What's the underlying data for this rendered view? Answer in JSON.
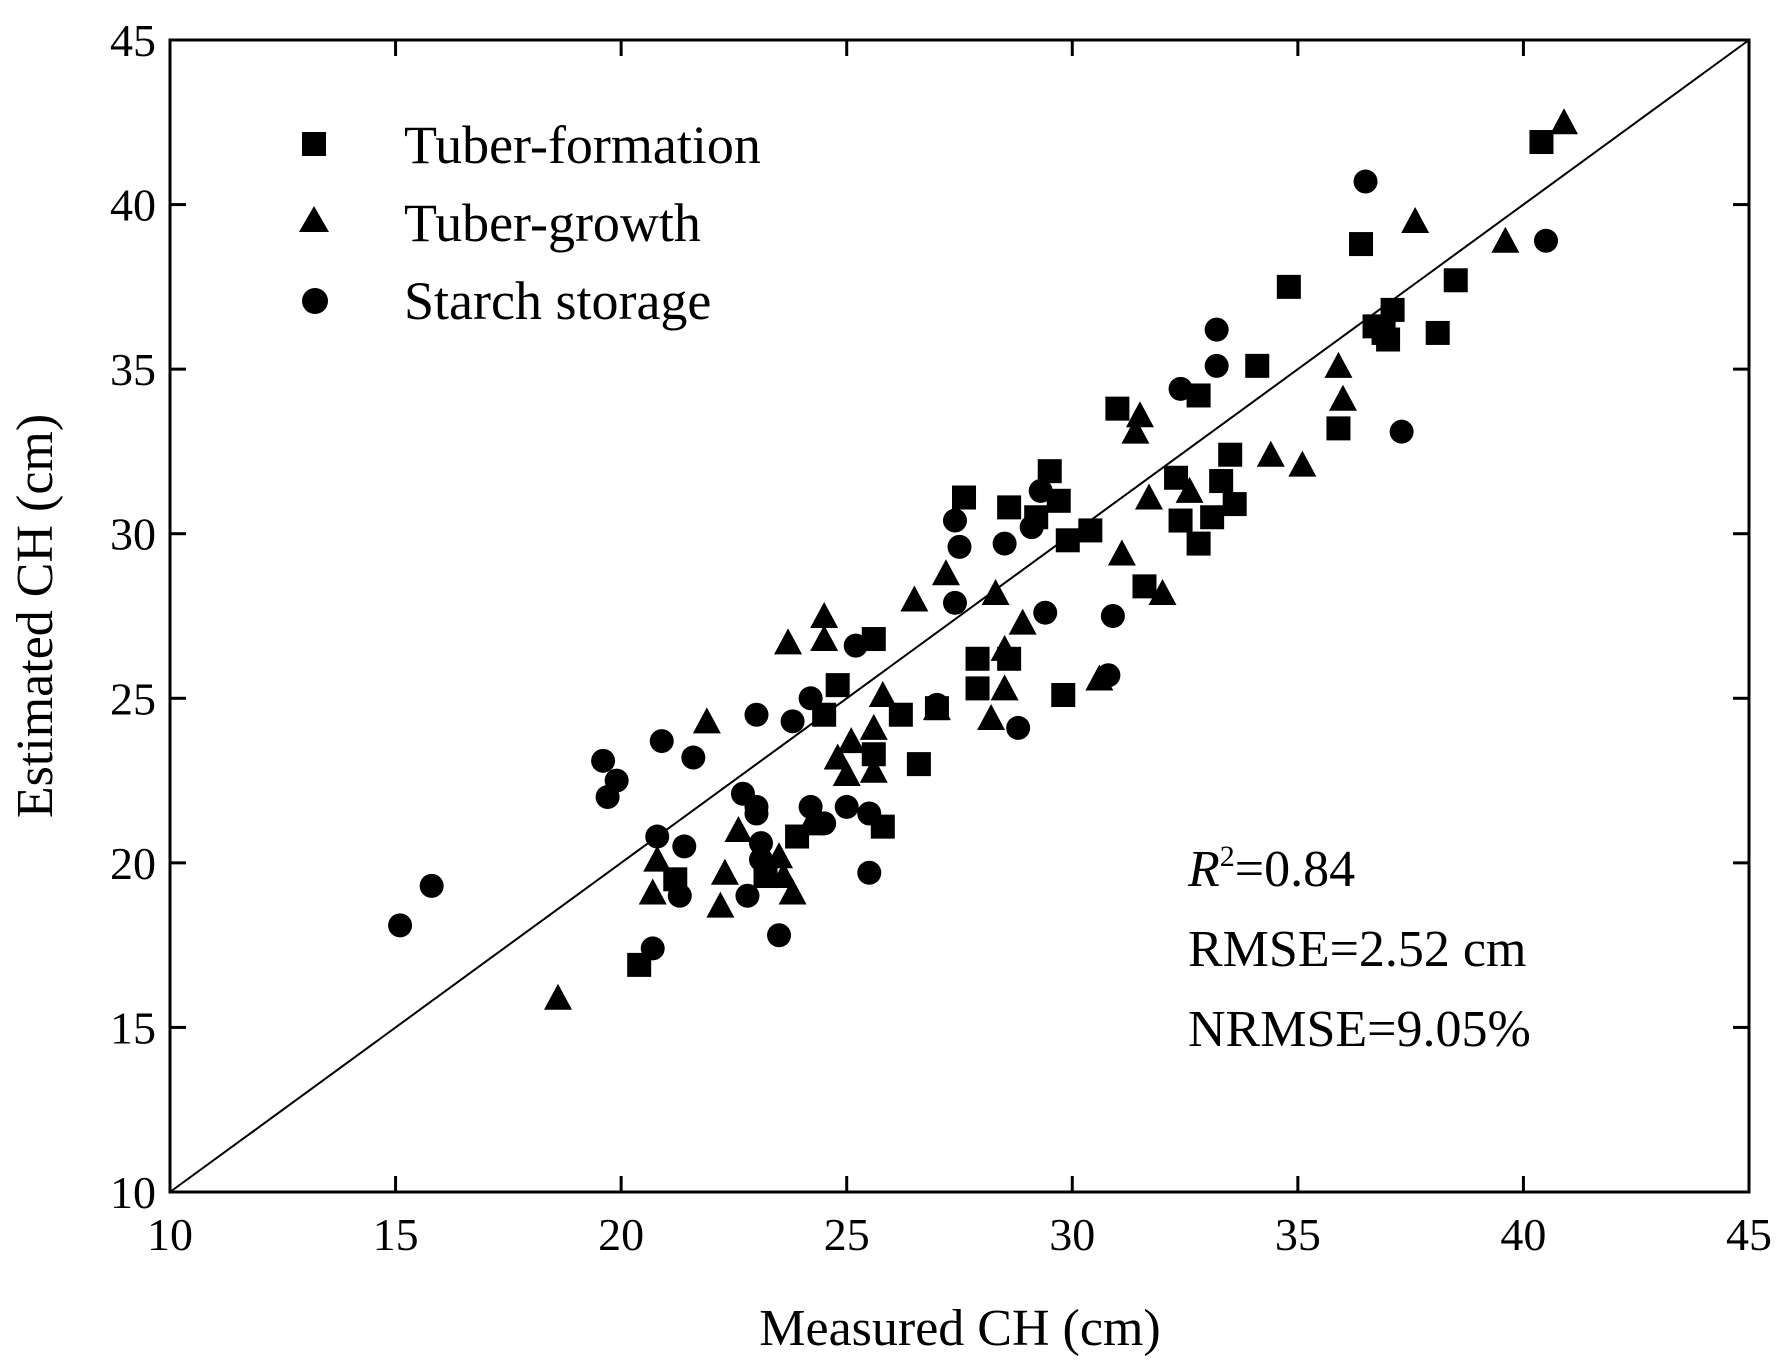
{
  "chart_data": {
    "type": "scatter",
    "xlabel": "Measured CH (cm)",
    "ylabel": "Estimated CH (cm)",
    "xlim": [
      10,
      45
    ],
    "ylim": [
      10,
      45
    ],
    "xticks": [
      "10",
      "15",
      "20",
      "25",
      "30",
      "35",
      "40",
      "45"
    ],
    "yticks": [
      "10",
      "15",
      "20",
      "25",
      "30",
      "35",
      "40",
      "45"
    ],
    "xtick_values": [
      10,
      15,
      20,
      25,
      30,
      35,
      40,
      45
    ],
    "ytick_values": [
      10,
      15,
      20,
      25,
      30,
      35,
      40,
      45
    ],
    "legend_position": "top-left",
    "reference_line": {
      "name": "1:1 line",
      "from": [
        10,
        10
      ],
      "to": [
        45,
        45
      ]
    },
    "annotations": {
      "r2_symbol": "R",
      "r2_sup": "2",
      "r2_value": "=0.84",
      "rmse": "RMSE=2.52 cm",
      "nrmse": "NRMSE=9.05%"
    },
    "series": [
      {
        "name": "Tuber-formation",
        "marker": "square",
        "points": [
          [
            20.4,
            16.9
          ],
          [
            21.2,
            19.5
          ],
          [
            23.2,
            19.6
          ],
          [
            23.9,
            20.8
          ],
          [
            24.5,
            24.5
          ],
          [
            24.8,
            25.4
          ],
          [
            25.6,
            26.8
          ],
          [
            25.6,
            23.3
          ],
          [
            25.8,
            21.1
          ],
          [
            26.2,
            24.5
          ],
          [
            26.6,
            23.0
          ],
          [
            27.0,
            24.7
          ],
          [
            27.6,
            31.1
          ],
          [
            27.9,
            26.2
          ],
          [
            27.9,
            25.3
          ],
          [
            28.6,
            26.2
          ],
          [
            28.6,
            30.8
          ],
          [
            29.2,
            30.5
          ],
          [
            29.5,
            31.9
          ],
          [
            29.7,
            31.0
          ],
          [
            29.8,
            25.1
          ],
          [
            29.9,
            29.8
          ],
          [
            30.4,
            30.1
          ],
          [
            31.0,
            33.8
          ],
          [
            31.6,
            28.4
          ],
          [
            32.3,
            31.7
          ],
          [
            32.4,
            30.4
          ],
          [
            32.8,
            29.7
          ],
          [
            32.8,
            34.2
          ],
          [
            33.1,
            30.5
          ],
          [
            33.3,
            31.6
          ],
          [
            33.5,
            32.4
          ],
          [
            33.6,
            30.9
          ],
          [
            34.1,
            35.1
          ],
          [
            34.8,
            37.5
          ],
          [
            35.9,
            33.2
          ],
          [
            36.4,
            38.8
          ],
          [
            36.7,
            36.3
          ],
          [
            36.9,
            36.1
          ],
          [
            37.0,
            35.9
          ],
          [
            37.1,
            36.8
          ],
          [
            38.1,
            36.1
          ],
          [
            38.5,
            37.7
          ],
          [
            40.4,
            41.9
          ]
        ]
      },
      {
        "name": "Tuber-growth",
        "marker": "triangle",
        "points": [
          [
            18.6,
            15.9
          ],
          [
            20.7,
            19.1
          ],
          [
            20.8,
            20.1
          ],
          [
            21.9,
            24.3
          ],
          [
            22.2,
            18.7
          ],
          [
            22.3,
            19.7
          ],
          [
            22.6,
            21.0
          ],
          [
            23.5,
            20.2
          ],
          [
            23.6,
            19.6
          ],
          [
            23.7,
            26.7
          ],
          [
            23.8,
            19.1
          ],
          [
            24.2,
            21.2
          ],
          [
            24.5,
            27.5
          ],
          [
            24.5,
            26.8
          ],
          [
            24.8,
            23.2
          ],
          [
            25.0,
            22.7
          ],
          [
            25.1,
            23.7
          ],
          [
            25.6,
            22.8
          ],
          [
            25.6,
            24.1
          ],
          [
            25.8,
            25.1
          ],
          [
            26.5,
            28.0
          ],
          [
            27.2,
            28.8
          ],
          [
            27.0,
            24.7
          ],
          [
            28.2,
            24.4
          ],
          [
            28.3,
            28.2
          ],
          [
            28.5,
            25.3
          ],
          [
            28.5,
            26.5
          ],
          [
            28.9,
            27.3
          ],
          [
            30.6,
            25.6
          ],
          [
            31.1,
            29.4
          ],
          [
            31.4,
            33.1
          ],
          [
            31.5,
            33.6
          ],
          [
            31.7,
            31.1
          ],
          [
            32.0,
            28.2
          ],
          [
            32.6,
            31.3
          ],
          [
            34.4,
            32.4
          ],
          [
            35.1,
            32.1
          ],
          [
            35.9,
            35.1
          ],
          [
            36.0,
            34.1
          ],
          [
            37.6,
            39.5
          ],
          [
            39.6,
            38.9
          ],
          [
            40.9,
            42.5
          ]
        ]
      },
      {
        "name": "Starch storage",
        "marker": "circle",
        "points": [
          [
            15.1,
            18.1
          ],
          [
            15.8,
            19.3
          ],
          [
            19.6,
            23.1
          ],
          [
            19.7,
            22.0
          ],
          [
            19.9,
            22.5
          ],
          [
            20.7,
            17.4
          ],
          [
            20.8,
            20.8
          ],
          [
            20.9,
            23.7
          ],
          [
            21.3,
            19.0
          ],
          [
            21.4,
            20.5
          ],
          [
            21.6,
            23.2
          ],
          [
            22.7,
            22.1
          ],
          [
            22.8,
            19.0
          ],
          [
            23.0,
            24.5
          ],
          [
            23.0,
            21.7
          ],
          [
            23.0,
            21.5
          ],
          [
            23.1,
            20.6
          ],
          [
            23.1,
            20.1
          ],
          [
            23.5,
            17.8
          ],
          [
            23.8,
            24.3
          ],
          [
            24.2,
            25.0
          ],
          [
            24.2,
            21.7
          ],
          [
            24.5,
            21.2
          ],
          [
            25.0,
            21.7
          ],
          [
            25.2,
            26.6
          ],
          [
            25.5,
            21.5
          ],
          [
            25.5,
            19.7
          ],
          [
            27.0,
            24.8
          ],
          [
            27.4,
            27.9
          ],
          [
            27.4,
            30.4
          ],
          [
            27.5,
            29.6
          ],
          [
            28.5,
            29.7
          ],
          [
            28.8,
            24.1
          ],
          [
            29.1,
            30.2
          ],
          [
            29.3,
            31.3
          ],
          [
            29.4,
            27.6
          ],
          [
            30.8,
            25.7
          ],
          [
            30.9,
            27.5
          ],
          [
            32.4,
            34.4
          ],
          [
            33.2,
            36.2
          ],
          [
            33.2,
            35.1
          ],
          [
            36.5,
            40.7
          ],
          [
            37.3,
            33.1
          ],
          [
            40.5,
            38.9
          ]
        ]
      }
    ]
  }
}
